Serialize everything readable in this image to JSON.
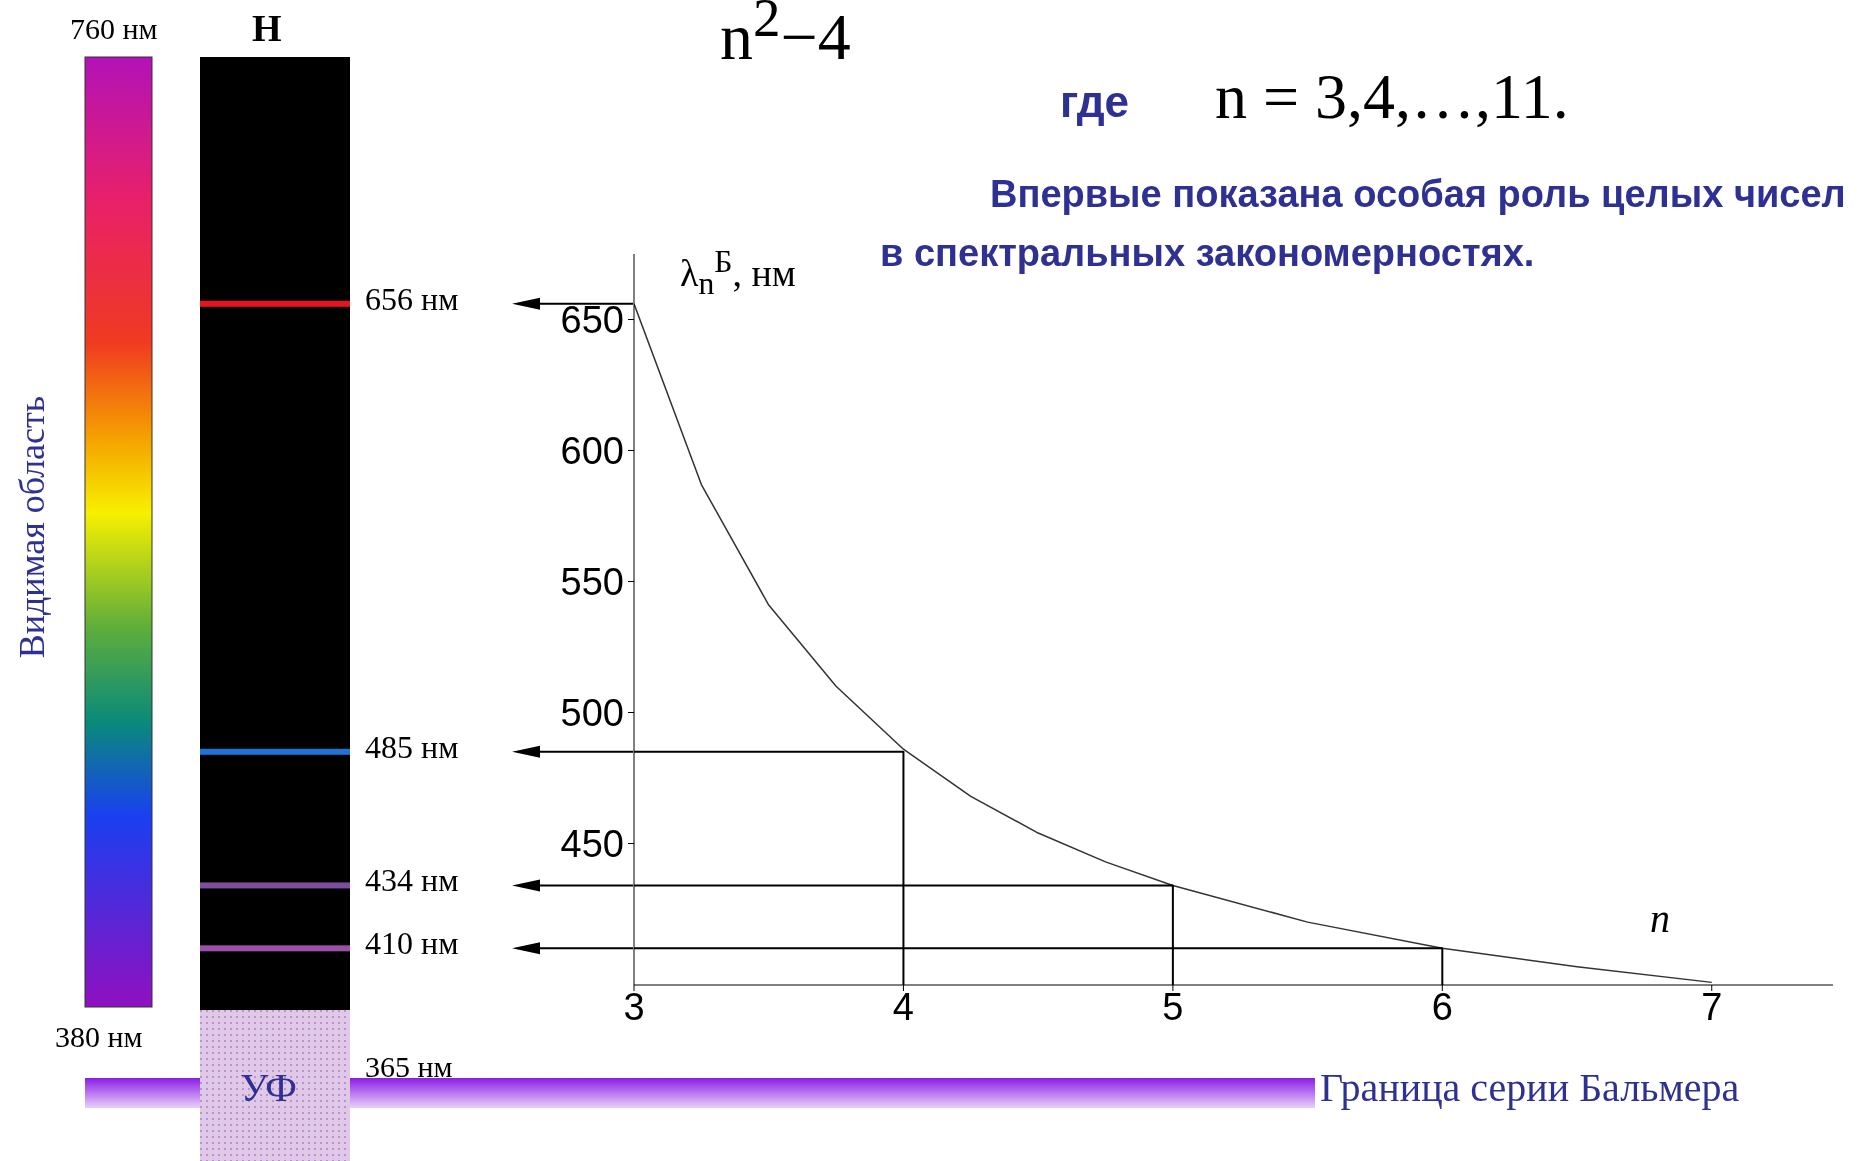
{
  "chart_data": {
    "type": "line",
    "xlabel": "n",
    "ylabel": "λ$_{n}$$^{Б}$, нм",
    "x": [
      3,
      3.25,
      3.5,
      3.75,
      4,
      4.25,
      4.5,
      4.75,
      5,
      5.5,
      6,
      6.5,
      7
    ],
    "series": [
      {
        "color": "#333333",
        "values": [
          656,
          587,
          541,
          510,
          486,
          468,
          454,
          443,
          434,
          420,
          410,
          403,
          397
        ]
      },
      {
        "color": "#000000",
        "x": [
          4,
          4,
          3
        ],
        "values": [
          396,
          485,
          485
        ]
      },
      {
        "color": "#000000",
        "x": [
          5,
          5,
          3
        ],
        "values": [
          396,
          434,
          434
        ]
      },
      {
        "color": "#000000",
        "x": [
          6,
          6,
          3
        ],
        "values": [
          396,
          410,
          410
        ]
      }
    ],
    "xlim": [
      3,
      7.45
    ],
    "xticks": [
      3,
      4,
      5,
      6,
      7
    ],
    "ylim": [
      396,
      675
    ],
    "yticks": [
      450,
      500,
      550,
      600,
      650
    ],
    "grid": false,
    "marker": "none",
    "line_style": "solid",
    "annotations": [
      "656 нм",
      "485 нм",
      "434 нм",
      "410 нм",
      "365 нм",
      "760 нм",
      "380 нм",
      "Видимая область",
      "H",
      "УФ",
      "Граница серии Бальмера",
      "где",
      "n = 3,4,…,11.",
      "Впервые показана особая роль целых чисел в спектральных закономерностях.",
      "n$^{2}$−4"
    ]
  }
}
